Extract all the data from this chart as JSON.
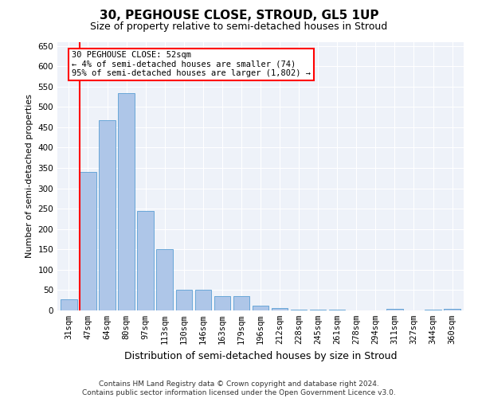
{
  "title": "30, PEGHOUSE CLOSE, STROUD, GL5 1UP",
  "subtitle": "Size of property relative to semi-detached houses in Stroud",
  "xlabel": "Distribution of semi-detached houses by size in Stroud",
  "ylabel": "Number of semi-detached properties",
  "categories": [
    "31sqm",
    "47sqm",
    "64sqm",
    "80sqm",
    "97sqm",
    "113sqm",
    "130sqm",
    "146sqm",
    "163sqm",
    "179sqm",
    "196sqm",
    "212sqm",
    "228sqm",
    "245sqm",
    "261sqm",
    "278sqm",
    "294sqm",
    "311sqm",
    "327sqm",
    "344sqm",
    "360sqm"
  ],
  "values": [
    27,
    340,
    467,
    533,
    244,
    150,
    50,
    50,
    35,
    35,
    12,
    5,
    2,
    2,
    2,
    0,
    0,
    3,
    0,
    2,
    3
  ],
  "bar_color": "#aec6e8",
  "bar_edge_color": "#5a9fd4",
  "vline_color": "red",
  "vline_x": 0.575,
  "annotation_text": "30 PEGHOUSE CLOSE: 52sqm\n← 4% of semi-detached houses are smaller (74)\n95% of semi-detached houses are larger (1,802) →",
  "annotation_box_color": "white",
  "annotation_box_edge_color": "red",
  "ylim": [
    0,
    660
  ],
  "yticks": [
    0,
    50,
    100,
    150,
    200,
    250,
    300,
    350,
    400,
    450,
    500,
    550,
    600,
    650
  ],
  "background_color": "#eef2f9",
  "footer": "Contains HM Land Registry data © Crown copyright and database right 2024.\nContains public sector information licensed under the Open Government Licence v3.0.",
  "title_fontsize": 11,
  "subtitle_fontsize": 9,
  "xlabel_fontsize": 9,
  "ylabel_fontsize": 8,
  "tick_fontsize": 7.5,
  "annotation_fontsize": 7.5,
  "footer_fontsize": 6.5
}
